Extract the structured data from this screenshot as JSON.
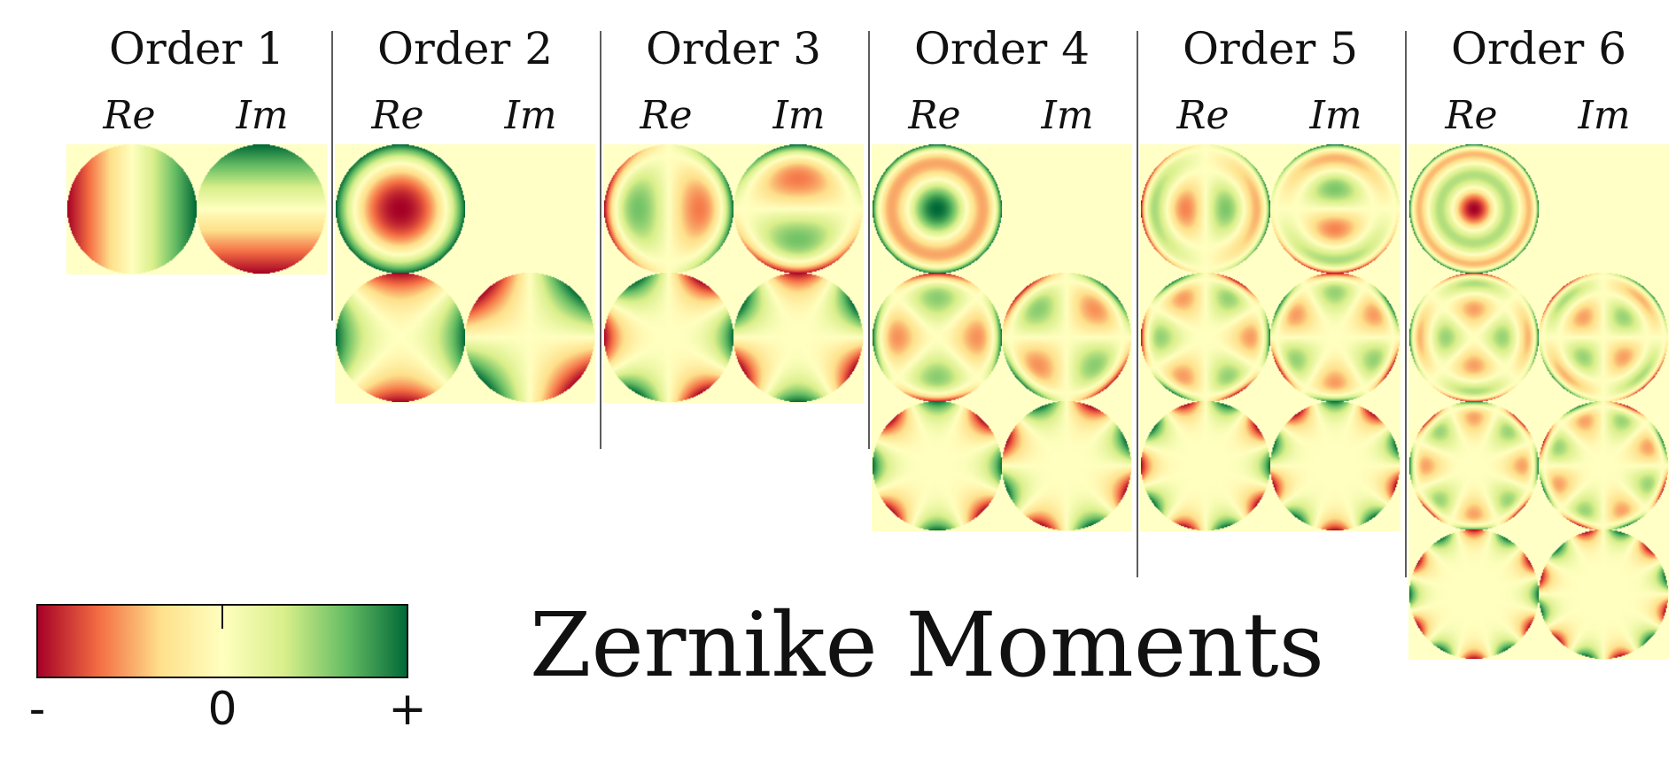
{
  "title": "Zernike Moments",
  "colors": {
    "background_tile": "#ffffc6",
    "divider": "#333333",
    "scale": [
      "#a50026",
      "#f46d43",
      "#fee08b",
      "#ffffbf",
      "#d9ef8b",
      "#66bd63",
      "#006837"
    ]
  },
  "scale_labels": {
    "negative": "-",
    "zero": "0",
    "positive": "+"
  },
  "part_labels": {
    "re": "Re",
    "im": "Im"
  },
  "orders": [
    {
      "label": "Order 1",
      "cells": [
        [
          {
            "part": "re",
            "n": 1,
            "m": 1
          },
          {
            "part": "im",
            "n": 1,
            "m": 1
          }
        ]
      ]
    },
    {
      "label": "Order 2",
      "cells": [
        [
          {
            "part": "re",
            "n": 2,
            "m": 0
          },
          null
        ],
        [
          {
            "part": "re",
            "n": 2,
            "m": 2
          },
          {
            "part": "im",
            "n": 2,
            "m": 2
          }
        ]
      ]
    },
    {
      "label": "Order 3",
      "cells": [
        [
          {
            "part": "re",
            "n": 3,
            "m": 1
          },
          {
            "part": "im",
            "n": 3,
            "m": 1
          }
        ],
        [
          {
            "part": "re",
            "n": 3,
            "m": 3
          },
          {
            "part": "im",
            "n": 3,
            "m": 3
          }
        ]
      ]
    },
    {
      "label": "Order 4",
      "cells": [
        [
          {
            "part": "re",
            "n": 4,
            "m": 0
          },
          null
        ],
        [
          {
            "part": "re",
            "n": 4,
            "m": 2
          },
          {
            "part": "im",
            "n": 4,
            "m": 2
          }
        ],
        [
          {
            "part": "re",
            "n": 4,
            "m": 4
          },
          {
            "part": "im",
            "n": 4,
            "m": 4
          }
        ]
      ]
    },
    {
      "label": "Order 5",
      "cells": [
        [
          {
            "part": "re",
            "n": 5,
            "m": 1
          },
          {
            "part": "im",
            "n": 5,
            "m": 1
          }
        ],
        [
          {
            "part": "re",
            "n": 5,
            "m": 3
          },
          {
            "part": "im",
            "n": 5,
            "m": 3
          }
        ],
        [
          {
            "part": "re",
            "n": 5,
            "m": 5
          },
          {
            "part": "im",
            "n": 5,
            "m": 5
          }
        ]
      ]
    },
    {
      "label": "Order 6",
      "cells": [
        [
          {
            "part": "re",
            "n": 6,
            "m": 0
          },
          null
        ],
        [
          {
            "part": "re",
            "n": 6,
            "m": 2
          },
          {
            "part": "im",
            "n": 6,
            "m": 2
          }
        ],
        [
          {
            "part": "re",
            "n": 6,
            "m": 4
          },
          {
            "part": "im",
            "n": 6,
            "m": 4
          }
        ],
        [
          {
            "part": "re",
            "n": 6,
            "m": 6
          },
          {
            "part": "im",
            "n": 6,
            "m": 6
          }
        ]
      ]
    }
  ]
}
